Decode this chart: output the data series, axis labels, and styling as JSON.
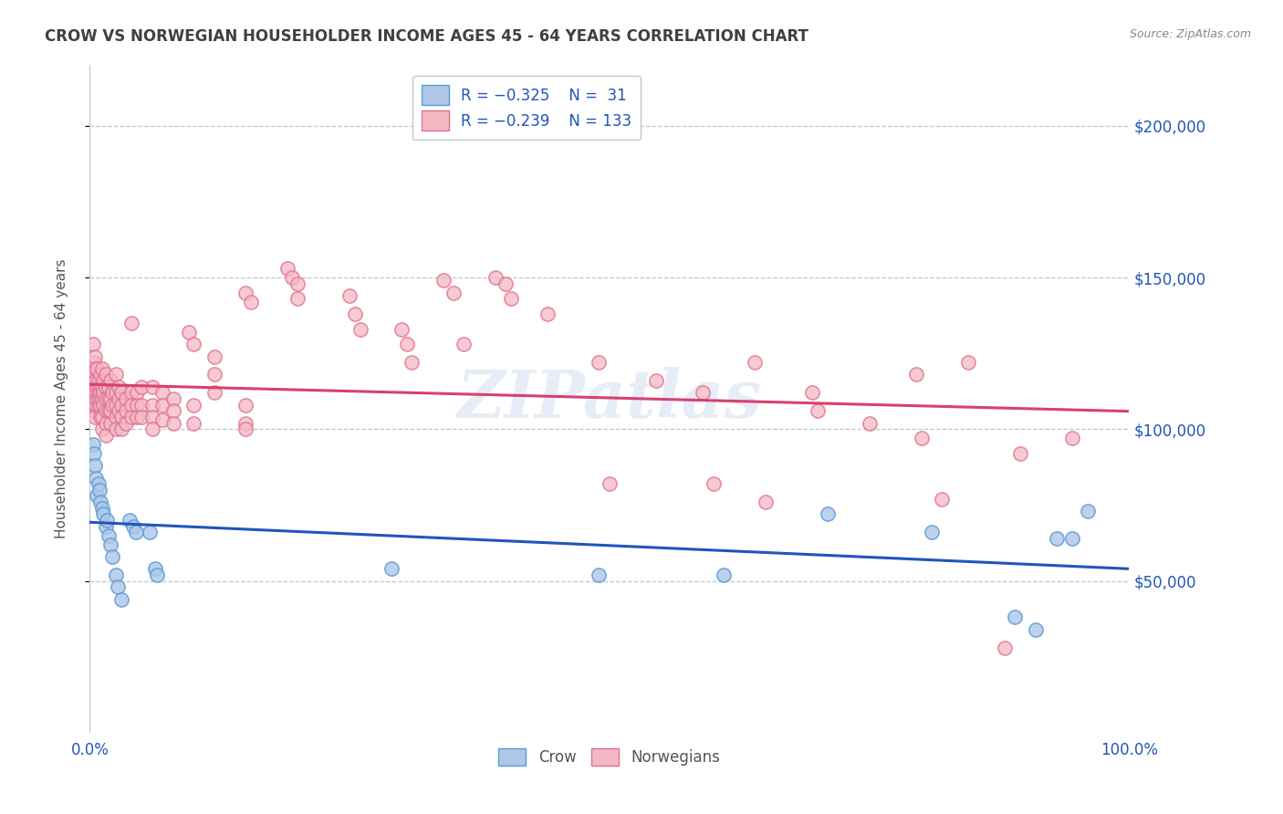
{
  "title": "CROW VS NORWEGIAN HOUSEHOLDER INCOME AGES 45 - 64 YEARS CORRELATION CHART",
  "source": "Source: ZipAtlas.com",
  "ylabel": "Householder Income Ages 45 - 64 years",
  "xlim": [
    0,
    1.0
  ],
  "ylim": [
    0,
    220000
  ],
  "ytick_values": [
    50000,
    100000,
    150000,
    200000
  ],
  "ytick_labels": [
    "$50,000",
    "$100,000",
    "$150,000",
    "$200,000"
  ],
  "crow_color": "#aec6e8",
  "crow_edge_color": "#5b9bd5",
  "norwegian_color": "#f4b8c5",
  "norwegian_edge_color": "#e07090",
  "trendline_crow_color": "#2255bb",
  "trendline_norwegian_color": "#d94070",
  "watermark": "ZIPatlas",
  "crow_points": [
    [
      0.003,
      95000
    ],
    [
      0.004,
      92000
    ],
    [
      0.005,
      88000
    ],
    [
      0.006,
      84000
    ],
    [
      0.007,
      78000
    ],
    [
      0.008,
      82000
    ],
    [
      0.009,
      80000
    ],
    [
      0.01,
      76000
    ],
    [
      0.012,
      74000
    ],
    [
      0.013,
      72000
    ],
    [
      0.015,
      68000
    ],
    [
      0.016,
      70000
    ],
    [
      0.018,
      65000
    ],
    [
      0.02,
      62000
    ],
    [
      0.022,
      58000
    ],
    [
      0.025,
      52000
    ],
    [
      0.027,
      48000
    ],
    [
      0.03,
      44000
    ],
    [
      0.038,
      70000
    ],
    [
      0.042,
      68000
    ],
    [
      0.044,
      66000
    ],
    [
      0.058,
      66000
    ],
    [
      0.063,
      54000
    ],
    [
      0.065,
      52000
    ],
    [
      0.29,
      54000
    ],
    [
      0.49,
      52000
    ],
    [
      0.61,
      52000
    ],
    [
      0.71,
      72000
    ],
    [
      0.81,
      66000
    ],
    [
      0.89,
      38000
    ],
    [
      0.91,
      34000
    ],
    [
      0.93,
      64000
    ],
    [
      0.945,
      64000
    ],
    [
      0.96,
      73000
    ]
  ],
  "norwegian_points": [
    [
      0.003,
      128000
    ],
    [
      0.003,
      118000
    ],
    [
      0.003,
      112000
    ],
    [
      0.004,
      122000
    ],
    [
      0.004,
      118000
    ],
    [
      0.004,
      110000
    ],
    [
      0.004,
      106000
    ],
    [
      0.005,
      124000
    ],
    [
      0.005,
      116000
    ],
    [
      0.005,
      112000
    ],
    [
      0.005,
      108000
    ],
    [
      0.005,
      104000
    ],
    [
      0.006,
      120000
    ],
    [
      0.006,
      116000
    ],
    [
      0.006,
      112000
    ],
    [
      0.006,
      108000
    ],
    [
      0.007,
      120000
    ],
    [
      0.007,
      114000
    ],
    [
      0.007,
      110000
    ],
    [
      0.008,
      116000
    ],
    [
      0.008,
      112000
    ],
    [
      0.008,
      108000
    ],
    [
      0.009,
      114000
    ],
    [
      0.009,
      110000
    ],
    [
      0.01,
      118000
    ],
    [
      0.01,
      112000
    ],
    [
      0.01,
      108000
    ],
    [
      0.01,
      104000
    ],
    [
      0.012,
      120000
    ],
    [
      0.012,
      114000
    ],
    [
      0.012,
      110000
    ],
    [
      0.012,
      104000
    ],
    [
      0.012,
      100000
    ],
    [
      0.013,
      116000
    ],
    [
      0.013,
      112000
    ],
    [
      0.013,
      108000
    ],
    [
      0.015,
      118000
    ],
    [
      0.015,
      114000
    ],
    [
      0.015,
      110000
    ],
    [
      0.015,
      106000
    ],
    [
      0.015,
      102000
    ],
    [
      0.015,
      98000
    ],
    [
      0.018,
      114000
    ],
    [
      0.018,
      110000
    ],
    [
      0.018,
      106000
    ],
    [
      0.02,
      116000
    ],
    [
      0.02,
      110000
    ],
    [
      0.02,
      106000
    ],
    [
      0.02,
      102000
    ],
    [
      0.022,
      112000
    ],
    [
      0.022,
      108000
    ],
    [
      0.025,
      118000
    ],
    [
      0.025,
      112000
    ],
    [
      0.025,
      108000
    ],
    [
      0.025,
      104000
    ],
    [
      0.025,
      100000
    ],
    [
      0.028,
      114000
    ],
    [
      0.028,
      110000
    ],
    [
      0.028,
      106000
    ],
    [
      0.03,
      112000
    ],
    [
      0.03,
      108000
    ],
    [
      0.03,
      104000
    ],
    [
      0.03,
      100000
    ],
    [
      0.035,
      110000
    ],
    [
      0.035,
      106000
    ],
    [
      0.035,
      102000
    ],
    [
      0.04,
      135000
    ],
    [
      0.04,
      112000
    ],
    [
      0.04,
      108000
    ],
    [
      0.04,
      104000
    ],
    [
      0.045,
      112000
    ],
    [
      0.045,
      108000
    ],
    [
      0.045,
      104000
    ],
    [
      0.05,
      114000
    ],
    [
      0.05,
      108000
    ],
    [
      0.05,
      104000
    ],
    [
      0.06,
      114000
    ],
    [
      0.06,
      108000
    ],
    [
      0.06,
      104000
    ],
    [
      0.06,
      100000
    ],
    [
      0.07,
      112000
    ],
    [
      0.07,
      108000
    ],
    [
      0.07,
      103000
    ],
    [
      0.08,
      110000
    ],
    [
      0.08,
      106000
    ],
    [
      0.08,
      102000
    ],
    [
      0.095,
      132000
    ],
    [
      0.1,
      128000
    ],
    [
      0.1,
      108000
    ],
    [
      0.1,
      102000
    ],
    [
      0.12,
      124000
    ],
    [
      0.12,
      118000
    ],
    [
      0.12,
      112000
    ],
    [
      0.15,
      145000
    ],
    [
      0.155,
      142000
    ],
    [
      0.15,
      108000
    ],
    [
      0.15,
      102000
    ],
    [
      0.15,
      100000
    ],
    [
      0.19,
      153000
    ],
    [
      0.195,
      150000
    ],
    [
      0.2,
      148000
    ],
    [
      0.2,
      143000
    ],
    [
      0.25,
      144000
    ],
    [
      0.255,
      138000
    ],
    [
      0.26,
      133000
    ],
    [
      0.3,
      133000
    ],
    [
      0.305,
      128000
    ],
    [
      0.31,
      122000
    ],
    [
      0.34,
      149000
    ],
    [
      0.35,
      145000
    ],
    [
      0.36,
      128000
    ],
    [
      0.39,
      150000
    ],
    [
      0.4,
      148000
    ],
    [
      0.405,
      143000
    ],
    [
      0.44,
      138000
    ],
    [
      0.49,
      122000
    ],
    [
      0.5,
      82000
    ],
    [
      0.545,
      116000
    ],
    [
      0.59,
      112000
    ],
    [
      0.6,
      82000
    ],
    [
      0.64,
      122000
    ],
    [
      0.65,
      76000
    ],
    [
      0.695,
      112000
    ],
    [
      0.7,
      106000
    ],
    [
      0.75,
      102000
    ],
    [
      0.795,
      118000
    ],
    [
      0.8,
      97000
    ],
    [
      0.82,
      77000
    ],
    [
      0.845,
      122000
    ],
    [
      0.88,
      28000
    ],
    [
      0.895,
      92000
    ],
    [
      0.945,
      97000
    ]
  ]
}
